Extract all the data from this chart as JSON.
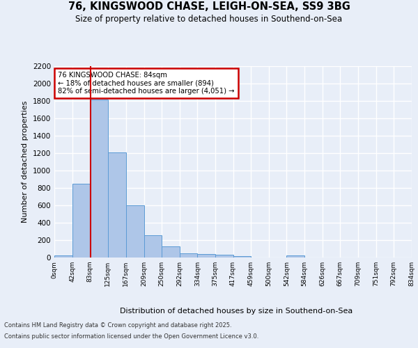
{
  "title_line1": "76, KINGSWOOD CHASE, LEIGH-ON-SEA, SS9 3BG",
  "title_line2": "Size of property relative to detached houses in Southend-on-Sea",
  "xlabel": "Distribution of detached houses by size in Southend-on-Sea",
  "ylabel": "Number of detached properties",
  "footer_line1": "Contains HM Land Registry data © Crown copyright and database right 2025.",
  "footer_line2": "Contains public sector information licensed under the Open Government Licence v3.0.",
  "annotation_title": "76 KINGSWOOD CHASE: 84sqm",
  "annotation_line1": "← 18% of detached houses are smaller (894)",
  "annotation_line2": "82% of semi-detached houses are larger (4,051) →",
  "property_size": 84,
  "bar_edges": [
    0,
    42,
    83,
    125,
    167,
    209,
    250,
    292,
    334,
    375,
    417,
    459,
    500,
    542,
    584,
    626,
    667,
    709,
    751,
    792,
    834
  ],
  "bar_heights": [
    25,
    845,
    1820,
    1210,
    600,
    260,
    130,
    50,
    42,
    32,
    20,
    0,
    0,
    22,
    0,
    0,
    0,
    0,
    0,
    0
  ],
  "bar_color": "#aec6e8",
  "bar_edgecolor": "#5b9bd5",
  "vline_x": 84,
  "vline_color": "#cc0000",
  "ylim": [
    0,
    2200
  ],
  "yticks": [
    0,
    200,
    400,
    600,
    800,
    1000,
    1200,
    1400,
    1600,
    1800,
    2000,
    2200
  ],
  "background_color": "#e8eef8",
  "grid_color": "#ffffff",
  "annotation_box_color": "#cc0000",
  "annotation_bg": "#ffffff"
}
